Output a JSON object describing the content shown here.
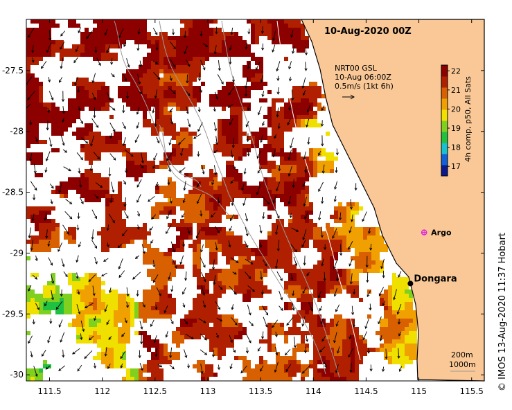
{
  "title": "10-Aug-2020 00Z",
  "current_legend": {
    "line1": "NRT00 GSL",
    "line2": "10-Aug 06:00Z",
    "line3": "0.5m/s (1kt 6h)"
  },
  "colorbar": {
    "label": "4h comp, p50, All Sats",
    "ticks": [
      "17",
      "18",
      "19",
      "20",
      "21",
      "22"
    ],
    "min": 16.5,
    "max": 22.3,
    "colors": [
      "#0a1a8c",
      "#1060d8",
      "#18c0d0",
      "#20c040",
      "#80d020",
      "#f0e000",
      "#f0a000",
      "#d86000",
      "#b02000",
      "#8c0000"
    ]
  },
  "isobath_labels": {
    "line1": "200m",
    "line2": "1000m"
  },
  "places": [
    {
      "name": "Dongara",
      "lon": 114.92,
      "lat": -29.25,
      "color": "#000000"
    },
    {
      "name": "Argo",
      "lon": 115.05,
      "lat": -28.83,
      "color": "#e020e0"
    }
  ],
  "axes": {
    "lon_ticks": [
      "111.5",
      "112",
      "112.5",
      "113",
      "113.5",
      "114",
      "114.5",
      "115",
      "115.5"
    ],
    "lat_ticks": [
      "-27.5",
      "-28",
      "-28.5",
      "-29",
      "-29.5",
      "-30"
    ],
    "lon_range": [
      111.28,
      115.62
    ],
    "lat_range": [
      -27.08,
      -30.05
    ]
  },
  "land_color": "#f9c896",
  "credit": "© IMOS 13-Aug-2020 11:37 Hobart"
}
